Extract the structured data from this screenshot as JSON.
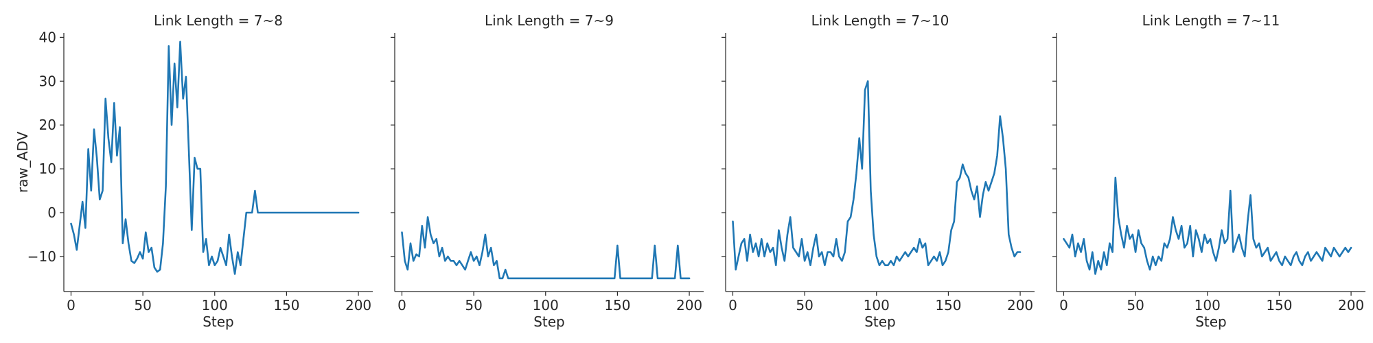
{
  "chart_data": [
    {
      "type": "line",
      "title": "Link Length = 7~8",
      "xlabel": "Step",
      "ylabel": "raw_ADV",
      "xlim": [
        -5,
        210
      ],
      "ylim": [
        -18,
        41
      ],
      "xticks": [
        0,
        50,
        100,
        150,
        200
      ],
      "yticks": [
        -10,
        0,
        10,
        20,
        30,
        40
      ],
      "grid": false,
      "color": "#1f77b4",
      "series": [
        {
          "x": [
            0,
            2,
            4,
            6,
            8,
            10,
            12,
            14,
            16,
            18,
            20,
            22,
            24,
            26,
            28,
            30,
            32,
            34,
            36,
            38,
            40,
            42,
            44,
            46,
            48,
            50,
            52,
            54,
            56,
            58,
            60,
            62,
            64,
            66,
            68,
            70,
            72,
            74,
            76,
            78,
            80,
            82,
            84,
            86,
            88,
            90,
            92,
            94,
            96,
            98,
            100,
            102,
            104,
            106,
            108,
            110,
            112,
            114,
            116,
            118,
            120,
            122,
            124,
            126,
            128,
            130,
            132,
            134,
            136,
            138,
            140,
            145,
            150,
            160,
            170,
            180,
            190,
            200
          ],
          "y": [
            -2.5,
            -5,
            -8.5,
            -3,
            2.5,
            -3.5,
            14.5,
            5,
            19,
            12.5,
            3,
            5,
            26,
            17,
            11.5,
            25,
            13,
            19.5,
            -7,
            -1.5,
            -7,
            -11,
            -11.5,
            -10.5,
            -9,
            -10.5,
            -4.5,
            -9,
            -8,
            -12.5,
            -13.5,
            -13,
            -7,
            6,
            38,
            20,
            34,
            24,
            39,
            26,
            31,
            14,
            -4,
            12.5,
            10,
            10,
            -9,
            -6,
            -12,
            -10,
            -12,
            -11,
            -8,
            -10,
            -12,
            -5,
            -10,
            -14,
            -9,
            -12,
            -6,
            0,
            0,
            0,
            5,
            0,
            0,
            0,
            0,
            0,
            0,
            0,
            0,
            0,
            0,
            0,
            0,
            0
          ]
        }
      ]
    },
    {
      "type": "line",
      "title": "Link Length = 7~9",
      "xlabel": "Step",
      "ylabel": "",
      "xlim": [
        -5,
        210
      ],
      "ylim": [
        -18,
        41
      ],
      "xticks": [
        0,
        50,
        100,
        150,
        200
      ],
      "yticks": [
        -10,
        0,
        10,
        20,
        30,
        40
      ],
      "grid": false,
      "color": "#1f77b4",
      "series": [
        {
          "x": [
            0,
            2,
            4,
            6,
            8,
            10,
            12,
            14,
            16,
            18,
            20,
            22,
            24,
            26,
            28,
            30,
            32,
            34,
            36,
            38,
            40,
            42,
            44,
            46,
            48,
            50,
            52,
            54,
            56,
            58,
            60,
            62,
            64,
            66,
            68,
            70,
            72,
            74,
            76,
            78,
            80,
            82,
            84,
            86,
            96,
            98,
            100,
            102,
            104,
            110,
            118,
            120,
            122,
            124,
            126,
            128,
            130,
            148,
            150,
            152,
            174,
            176,
            178,
            190,
            192,
            194,
            200
          ],
          "y": [
            -4.5,
            -11,
            -13,
            -7,
            -11,
            -9.5,
            -10,
            -3,
            -8,
            -1,
            -5,
            -7,
            -6,
            -10,
            -8,
            -11,
            -10,
            -11,
            -11,
            -12,
            -11,
            -12,
            -13,
            -11,
            -9,
            -11,
            -10,
            -12,
            -9,
            -5,
            -10,
            -8,
            -12,
            -11,
            -15,
            -15,
            -13,
            -15,
            -15,
            -15,
            -15,
            -15,
            -15,
            -15,
            -15,
            -15,
            -15,
            -15,
            -15,
            -15,
            -15,
            -15,
            -15,
            -15,
            -15,
            -15,
            -15,
            -15,
            -7.5,
            -15,
            -15,
            -7.5,
            -15,
            -15,
            -7.5,
            -15,
            -15
          ]
        }
      ]
    },
    {
      "type": "line",
      "title": "Link Length = 7~10",
      "xlabel": "Step",
      "ylabel": "",
      "xlim": [
        -5,
        210
      ],
      "ylim": [
        -18,
        41
      ],
      "xticks": [
        0,
        50,
        100,
        150,
        200
      ],
      "yticks": [
        -10,
        0,
        10,
        20,
        30,
        40
      ],
      "grid": false,
      "color": "#1f77b4",
      "series": [
        {
          "x": [
            0,
            2,
            4,
            6,
            8,
            10,
            12,
            14,
            16,
            18,
            20,
            22,
            24,
            26,
            28,
            30,
            32,
            34,
            36,
            38,
            40,
            42,
            44,
            46,
            48,
            50,
            52,
            54,
            56,
            58,
            60,
            62,
            64,
            66,
            68,
            70,
            72,
            74,
            76,
            78,
            80,
            82,
            84,
            86,
            88,
            90,
            92,
            94,
            96,
            98,
            100,
            102,
            104,
            106,
            108,
            110,
            112,
            114,
            116,
            118,
            120,
            122,
            124,
            126,
            128,
            130,
            132,
            134,
            136,
            138,
            140,
            142,
            144,
            146,
            148,
            150,
            152,
            154,
            156,
            158,
            160,
            162,
            164,
            166,
            168,
            170,
            172,
            174,
            176,
            178,
            180,
            182,
            184,
            186,
            188,
            190,
            192,
            194,
            196,
            198,
            200
          ],
          "y": [
            -2,
            -13,
            -10,
            -7,
            -6,
            -11,
            -5,
            -9,
            -7,
            -10,
            -6,
            -10,
            -7,
            -9,
            -8,
            -12,
            -4,
            -8,
            -11,
            -5,
            -1,
            -8,
            -9,
            -10,
            -6,
            -11,
            -9,
            -12,
            -8,
            -5,
            -10,
            -9,
            -12,
            -9,
            -9,
            -10,
            -6,
            -10,
            -11,
            -9,
            -2,
            -1,
            3,
            9,
            17,
            10,
            28,
            30,
            5,
            -5,
            -10,
            -12,
            -11,
            -12,
            -12,
            -11,
            -12,
            -10,
            -11,
            -10,
            -9,
            -10,
            -9,
            -8,
            -9,
            -6,
            -8,
            -7,
            -12,
            -11,
            -10,
            -11,
            -9,
            -12,
            -11,
            -9,
            -4,
            -2,
            7,
            8,
            11,
            9,
            8,
            5,
            3,
            6,
            -1,
            4,
            7,
            5,
            7,
            9,
            13,
            22,
            17,
            10,
            -5,
            -8,
            -10,
            -9,
            -9
          ]
        }
      ]
    },
    {
      "type": "line",
      "title": "Link Length = 7~11",
      "xlabel": "Step",
      "ylabel": "",
      "xlim": [
        -5,
        210
      ],
      "ylim": [
        -18,
        41
      ],
      "xticks": [
        0,
        50,
        100,
        150,
        200
      ],
      "yticks": [
        -10,
        0,
        10,
        20,
        30,
        40
      ],
      "grid": false,
      "color": "#1f77b4",
      "series": [
        {
          "x": [
            0,
            2,
            4,
            6,
            8,
            10,
            12,
            14,
            16,
            18,
            20,
            22,
            24,
            26,
            28,
            30,
            32,
            34,
            36,
            38,
            40,
            42,
            44,
            46,
            48,
            50,
            52,
            54,
            56,
            58,
            60,
            62,
            64,
            66,
            68,
            70,
            72,
            74,
            76,
            78,
            80,
            82,
            84,
            86,
            88,
            90,
            92,
            94,
            96,
            98,
            100,
            102,
            104,
            106,
            108,
            110,
            112,
            114,
            116,
            118,
            120,
            122,
            124,
            126,
            128,
            130,
            132,
            134,
            136,
            138,
            140,
            142,
            144,
            146,
            148,
            150,
            152,
            154,
            156,
            158,
            160,
            162,
            164,
            166,
            168,
            170,
            172,
            174,
            176,
            178,
            180,
            182,
            184,
            186,
            188,
            190,
            192,
            194,
            196,
            198,
            200
          ],
          "y": [
            -6,
            -7,
            -8,
            -5,
            -10,
            -7,
            -9,
            -6,
            -11,
            -13,
            -9,
            -14,
            -11,
            -13,
            -9,
            -12,
            -7,
            -9,
            8,
            -1,
            -5,
            -8,
            -3,
            -6,
            -5,
            -9,
            -4,
            -7,
            -8,
            -11,
            -13,
            -10,
            -12,
            -10,
            -11,
            -7,
            -8,
            -6,
            -1,
            -4,
            -6,
            -3,
            -8,
            -7,
            -3,
            -10,
            -4,
            -6,
            -9,
            -5,
            -7,
            -6,
            -9,
            -11,
            -8,
            -4,
            -7,
            -6,
            5,
            -9,
            -7,
            -5,
            -8,
            -10,
            -2,
            4,
            -6,
            -8,
            -7,
            -10,
            -9,
            -8,
            -11,
            -10,
            -9,
            -11,
            -12,
            -10,
            -11,
            -12,
            -10,
            -9,
            -11,
            -12,
            -10,
            -9,
            -11,
            -10,
            -9,
            -10,
            -11,
            -8,
            -9,
            -10,
            -8,
            -9,
            -10,
            -9,
            -8,
            -9,
            -8
          ]
        }
      ]
    }
  ]
}
